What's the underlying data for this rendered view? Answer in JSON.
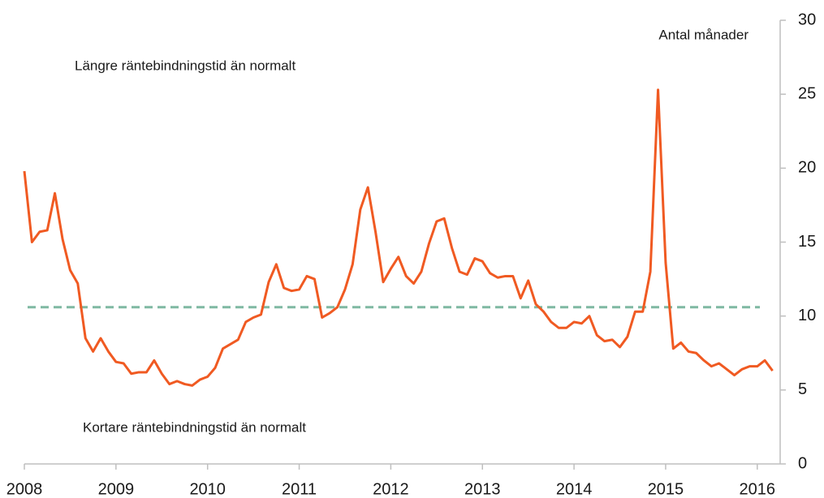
{
  "chart_data": {
    "type": "line",
    "annotations": [
      "Längre räntebindningstid än normalt",
      "Kortare räntebindningstid än normalt"
    ],
    "y_axis_label": "Antal månader",
    "x": [
      2008,
      2008.083,
      2008.167,
      2008.25,
      2008.333,
      2008.417,
      2008.5,
      2008.583,
      2008.667,
      2008.75,
      2008.833,
      2008.917,
      2009,
      2009.083,
      2009.167,
      2009.25,
      2009.333,
      2009.417,
      2009.5,
      2009.583,
      2009.667,
      2009.75,
      2009.833,
      2009.917,
      2010,
      2010.083,
      2010.167,
      2010.25,
      2010.333,
      2010.417,
      2010.5,
      2010.583,
      2010.667,
      2010.75,
      2010.833,
      2010.917,
      2011,
      2011.083,
      2011.167,
      2011.25,
      2011.333,
      2011.417,
      2011.5,
      2011.583,
      2011.667,
      2011.75,
      2011.833,
      2011.917,
      2012,
      2012.083,
      2012.167,
      2012.25,
      2012.333,
      2012.417,
      2012.5,
      2012.583,
      2012.667,
      2012.75,
      2012.833,
      2012.917,
      2013,
      2013.083,
      2013.167,
      2013.25,
      2013.333,
      2013.417,
      2013.5,
      2013.583,
      2013.667,
      2013.75,
      2013.833,
      2013.917,
      2014,
      2014.083,
      2014.167,
      2014.25,
      2014.333,
      2014.417,
      2014.5,
      2014.583,
      2014.667,
      2014.75,
      2014.833,
      2014.917,
      2015,
      2015.083,
      2015.167,
      2015.25,
      2015.333,
      2015.417,
      2015.5,
      2015.583,
      2015.667,
      2015.75,
      2015.833,
      2015.917,
      2016,
      2016.083,
      2016.167
    ],
    "series": [
      {
        "color": "#f05a22",
        "values": [
          19.8,
          15.0,
          15.7,
          15.8,
          18.3,
          15.2,
          13.1,
          12.2,
          8.5,
          7.6,
          8.5,
          7.6,
          6.9,
          6.8,
          6.1,
          6.2,
          6.2,
          7.0,
          6.1,
          5.4,
          5.6,
          5.4,
          5.3,
          5.7,
          5.9,
          6.5,
          7.8,
          8.1,
          8.4,
          9.6,
          9.9,
          10.1,
          12.3,
          13.5,
          11.9,
          11.7,
          11.8,
          12.7,
          12.5,
          9.9,
          10.2,
          10.6,
          11.8,
          13.5,
          17.2,
          18.7,
          15.7,
          12.3,
          13.2,
          14.0,
          12.7,
          12.2,
          13.0,
          14.9,
          16.4,
          16.6,
          14.6,
          13.0,
          12.8,
          13.9,
          13.7,
          12.9,
          12.6,
          12.7,
          12.7,
          11.2,
          12.4,
          10.8,
          10.3,
          9.6,
          9.2,
          9.2,
          9.6,
          9.5,
          10.0,
          8.7,
          8.3,
          8.4,
          7.9,
          8.6,
          10.3,
          10.3,
          13.0,
          25.3,
          13.6,
          7.8,
          8.2,
          7.6,
          7.5,
          7.0,
          6.6,
          6.8,
          6.4,
          6.0,
          6.4,
          6.6,
          6.6,
          7.0,
          6.3
        ]
      }
    ],
    "reference_line": {
      "value": 10.6,
      "color": "#7fb9a2",
      "style": "dashed"
    },
    "xlim": [
      2008,
      2016.25
    ],
    "xticks": [
      2008,
      2009,
      2010,
      2011,
      2012,
      2013,
      2014,
      2015,
      2016
    ],
    "ylim": [
      0,
      30
    ],
    "yticks": [
      0,
      5,
      10,
      15,
      20,
      25,
      30
    ],
    "y_axis_side": "right",
    "grid": false
  }
}
